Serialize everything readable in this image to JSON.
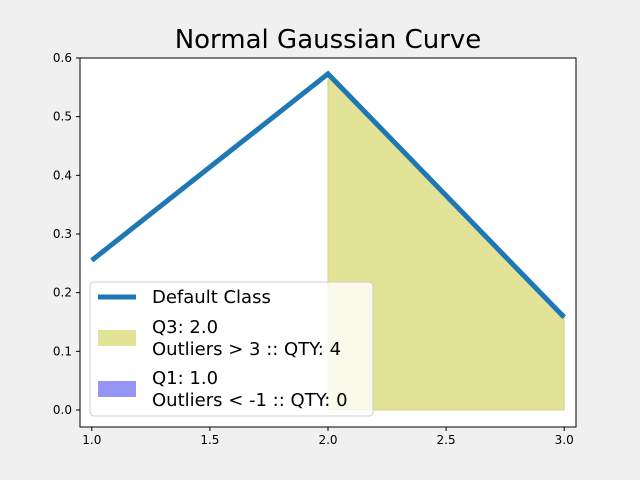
{
  "chart_data": {
    "type": "line",
    "title": "Normal Gaussian Curve",
    "xlabel": "",
    "ylabel": "",
    "xlim": [
      0.95,
      3.05
    ],
    "ylim": [
      -0.029,
      0.6
    ],
    "x_ticks": [
      1.0,
      1.5,
      2.0,
      2.5,
      3.0
    ],
    "x_tick_labels": [
      "1.0",
      "1.5",
      "2.0",
      "2.5",
      "3.0"
    ],
    "y_ticks": [
      0.0,
      0.1,
      0.2,
      0.3,
      0.4,
      0.5,
      0.6
    ],
    "y_tick_labels": [
      "0.0",
      "0.1",
      "0.2",
      "0.3",
      "0.4",
      "0.5",
      "0.6"
    ],
    "grid": false,
    "legend_position": "lower-left",
    "series": [
      {
        "name": "Default Class",
        "type": "line",
        "color": "#1f77b4",
        "x": [
          1.0,
          2.0,
          3.0
        ],
        "y": [
          0.255,
          0.573,
          0.158
        ]
      }
    ],
    "fills": [
      {
        "name": "Q3: 2.0\nOutliers > 3 :: QTY: 4",
        "label_lines": [
          "Q3: 2.0",
          "Outliers > 3 :: QTY: 4"
        ],
        "color": "#e3e397",
        "x": [
          2.0,
          3.0
        ],
        "y_top": [
          0.573,
          0.158
        ],
        "y_bottom": [
          0.0,
          0.0
        ]
      },
      {
        "name": "Q1: 1.0\nOutliers < -1 :: QTY: 0",
        "label_lines": [
          "Q1: 1.0",
          "Outliers < -1 :: QTY: 0"
        ],
        "color": "#9595f5",
        "x": [],
        "y_top": [],
        "y_bottom": []
      }
    ]
  }
}
